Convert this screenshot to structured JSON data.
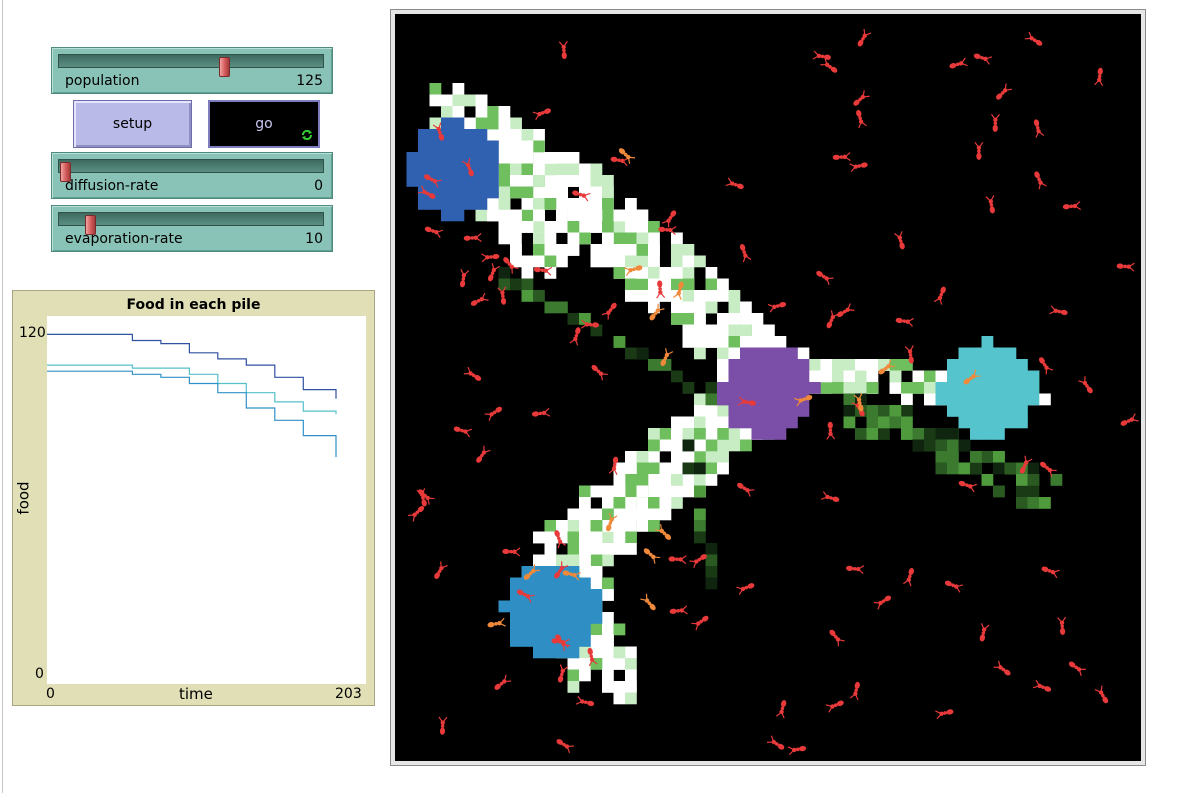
{
  "sliders": [
    {
      "label": "population",
      "value": "125",
      "fraction": 0.625
    },
    {
      "label": "diffusion-rate",
      "value": "0",
      "fraction": 0.0
    },
    {
      "label": "evaporation-rate",
      "value": "10",
      "fraction": 0.1
    }
  ],
  "buttons": {
    "setup_label": "setup",
    "go_label": "go",
    "go_forever_icon": "forever-icon"
  },
  "plot": {
    "title": "Food in each pile",
    "ylabel": "food",
    "xlabel": "time",
    "x_min_label": "0",
    "x_max_label": "203",
    "y_min_label": "0",
    "y_max_label": "120"
  },
  "chart_data": {
    "type": "line",
    "title": "Food in each pile",
    "xlabel": "time",
    "ylabel": "food",
    "xlim": [
      0,
      203
    ],
    "ylim": [
      0,
      120
    ],
    "grid": false,
    "series": [
      {
        "color": "#3050a0",
        "x": [
          0,
          40,
          60,
          80,
          100,
          120,
          140,
          160,
          180,
          203
        ],
        "y": [
          114,
          114,
          112,
          111,
          108,
          106,
          104,
          100,
          96,
          93
        ]
      },
      {
        "color": "#55c0c8",
        "x": [
          0,
          40,
          60,
          80,
          100,
          120,
          140,
          160,
          180,
          203
        ],
        "y": [
          104,
          104,
          103,
          103,
          101,
          98,
          95,
          92,
          89,
          88
        ]
      },
      {
        "color": "#3090c8",
        "x": [
          0,
          40,
          60,
          80,
          100,
          120,
          140,
          160,
          180,
          203
        ],
        "y": [
          102,
          102,
          101,
          100,
          98,
          95,
          90,
          86,
          81,
          74
        ]
      }
    ]
  },
  "world": {
    "background": "#000000",
    "food_piles": [
      {
        "name": "blue-pile",
        "color": "#3060b0"
      },
      {
        "name": "purple-pile",
        "color": "#7b4ea8"
      },
      {
        "name": "cyan-pile",
        "color": "#55c4cc"
      },
      {
        "name": "lightblue-pile",
        "color": "#2f8fc4"
      }
    ],
    "ant_color": "#e83a3a",
    "ant_carrying_color": "#f08a3a",
    "nest_color": "#7b4ea8"
  }
}
